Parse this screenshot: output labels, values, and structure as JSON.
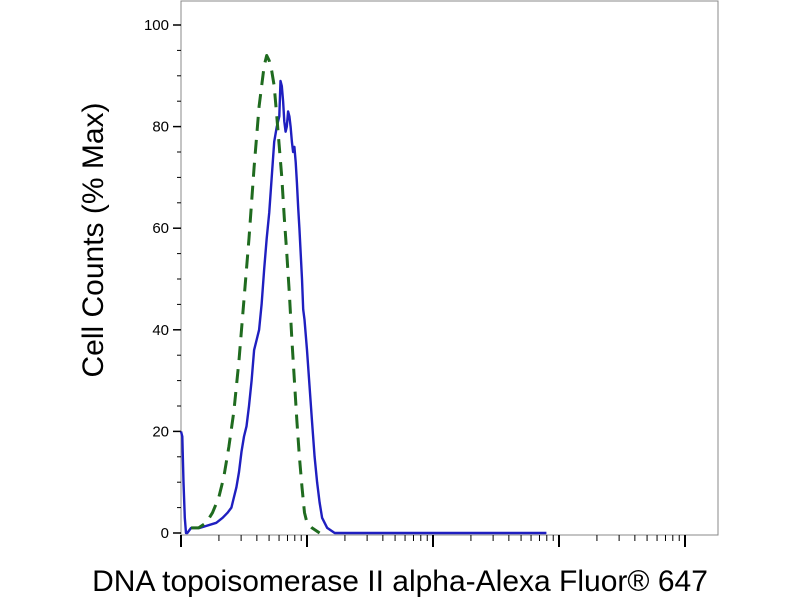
{
  "chart_data": {
    "type": "line",
    "xlabel": "DNA topoisomerase II alpha-Alexa Fluor® 647",
    "ylabel": "Cell Counts (% Max)",
    "x_scale": "log",
    "yticks": [
      "0",
      "20",
      "40",
      "60",
      "80",
      "100"
    ],
    "ylim": [
      0,
      100
    ],
    "colors": {
      "solid": "#1f1fc0",
      "dashed": "#1f6b1f"
    },
    "series": [
      {
        "style": "solid",
        "color": "#1f1fc0",
        "points": [
          [
            0.0,
            20
          ],
          [
            0.01,
            19
          ],
          [
            0.02,
            10
          ],
          [
            0.03,
            3
          ],
          [
            0.04,
            0
          ],
          [
            0.05,
            0
          ],
          [
            0.08,
            1
          ],
          [
            0.15,
            1
          ],
          [
            0.28,
            2
          ],
          [
            0.33,
            3
          ],
          [
            0.37,
            4
          ],
          [
            0.4,
            5
          ],
          [
            0.42,
            7
          ],
          [
            0.44,
            9
          ],
          [
            0.46,
            12
          ],
          [
            0.48,
            16
          ],
          [
            0.5,
            19
          ],
          [
            0.52,
            21
          ],
          [
            0.54,
            25
          ],
          [
            0.56,
            30
          ],
          [
            0.58,
            36
          ],
          [
            0.6,
            38
          ],
          [
            0.62,
            40
          ],
          [
            0.64,
            45
          ],
          [
            0.66,
            52
          ],
          [
            0.68,
            58
          ],
          [
            0.7,
            63
          ],
          [
            0.72,
            70
          ],
          [
            0.74,
            77
          ],
          [
            0.76,
            80
          ],
          [
            0.78,
            82
          ],
          [
            0.79,
            89
          ],
          [
            0.8,
            88
          ],
          [
            0.81,
            85
          ],
          [
            0.82,
            81
          ],
          [
            0.83,
            79
          ],
          [
            0.84,
            80
          ],
          [
            0.85,
            83
          ],
          [
            0.86,
            82
          ],
          [
            0.87,
            80
          ],
          [
            0.88,
            77
          ],
          [
            0.89,
            75
          ],
          [
            0.9,
            76
          ],
          [
            0.91,
            73
          ],
          [
            0.92,
            69
          ],
          [
            0.93,
            64
          ],
          [
            0.94,
            60
          ],
          [
            0.95,
            55
          ],
          [
            0.96,
            50
          ],
          [
            0.97,
            44
          ],
          [
            0.98,
            42
          ],
          [
            1.0,
            36
          ],
          [
            1.02,
            29
          ],
          [
            1.04,
            22
          ],
          [
            1.06,
            15
          ],
          [
            1.08,
            10
          ],
          [
            1.1,
            6
          ],
          [
            1.12,
            3
          ],
          [
            1.16,
            1
          ],
          [
            1.22,
            0
          ],
          [
            1.6,
            0
          ],
          [
            2.9,
            0
          ]
        ]
      },
      {
        "style": "dashed",
        "color": "#1f6b1f",
        "points": [
          [
            0.08,
            1
          ],
          [
            0.14,
            1
          ],
          [
            0.2,
            2
          ],
          [
            0.25,
            4
          ],
          [
            0.3,
            7
          ],
          [
            0.34,
            11
          ],
          [
            0.38,
            17
          ],
          [
            0.42,
            24
          ],
          [
            0.46,
            34
          ],
          [
            0.5,
            46
          ],
          [
            0.54,
            58
          ],
          [
            0.58,
            72
          ],
          [
            0.62,
            84
          ],
          [
            0.66,
            92
          ],
          [
            0.68,
            94
          ],
          [
            0.7,
            93
          ],
          [
            0.72,
            91
          ],
          [
            0.74,
            88
          ],
          [
            0.76,
            82
          ],
          [
            0.78,
            76
          ],
          [
            0.8,
            70
          ],
          [
            0.82,
            62
          ],
          [
            0.84,
            55
          ],
          [
            0.86,
            47
          ],
          [
            0.88,
            38
          ],
          [
            0.9,
            30
          ],
          [
            0.92,
            22
          ],
          [
            0.94,
            15
          ],
          [
            0.96,
            9
          ],
          [
            0.98,
            4
          ],
          [
            1.0,
            2
          ],
          [
            1.04,
            1
          ],
          [
            1.1,
            0
          ]
        ]
      }
    ]
  }
}
